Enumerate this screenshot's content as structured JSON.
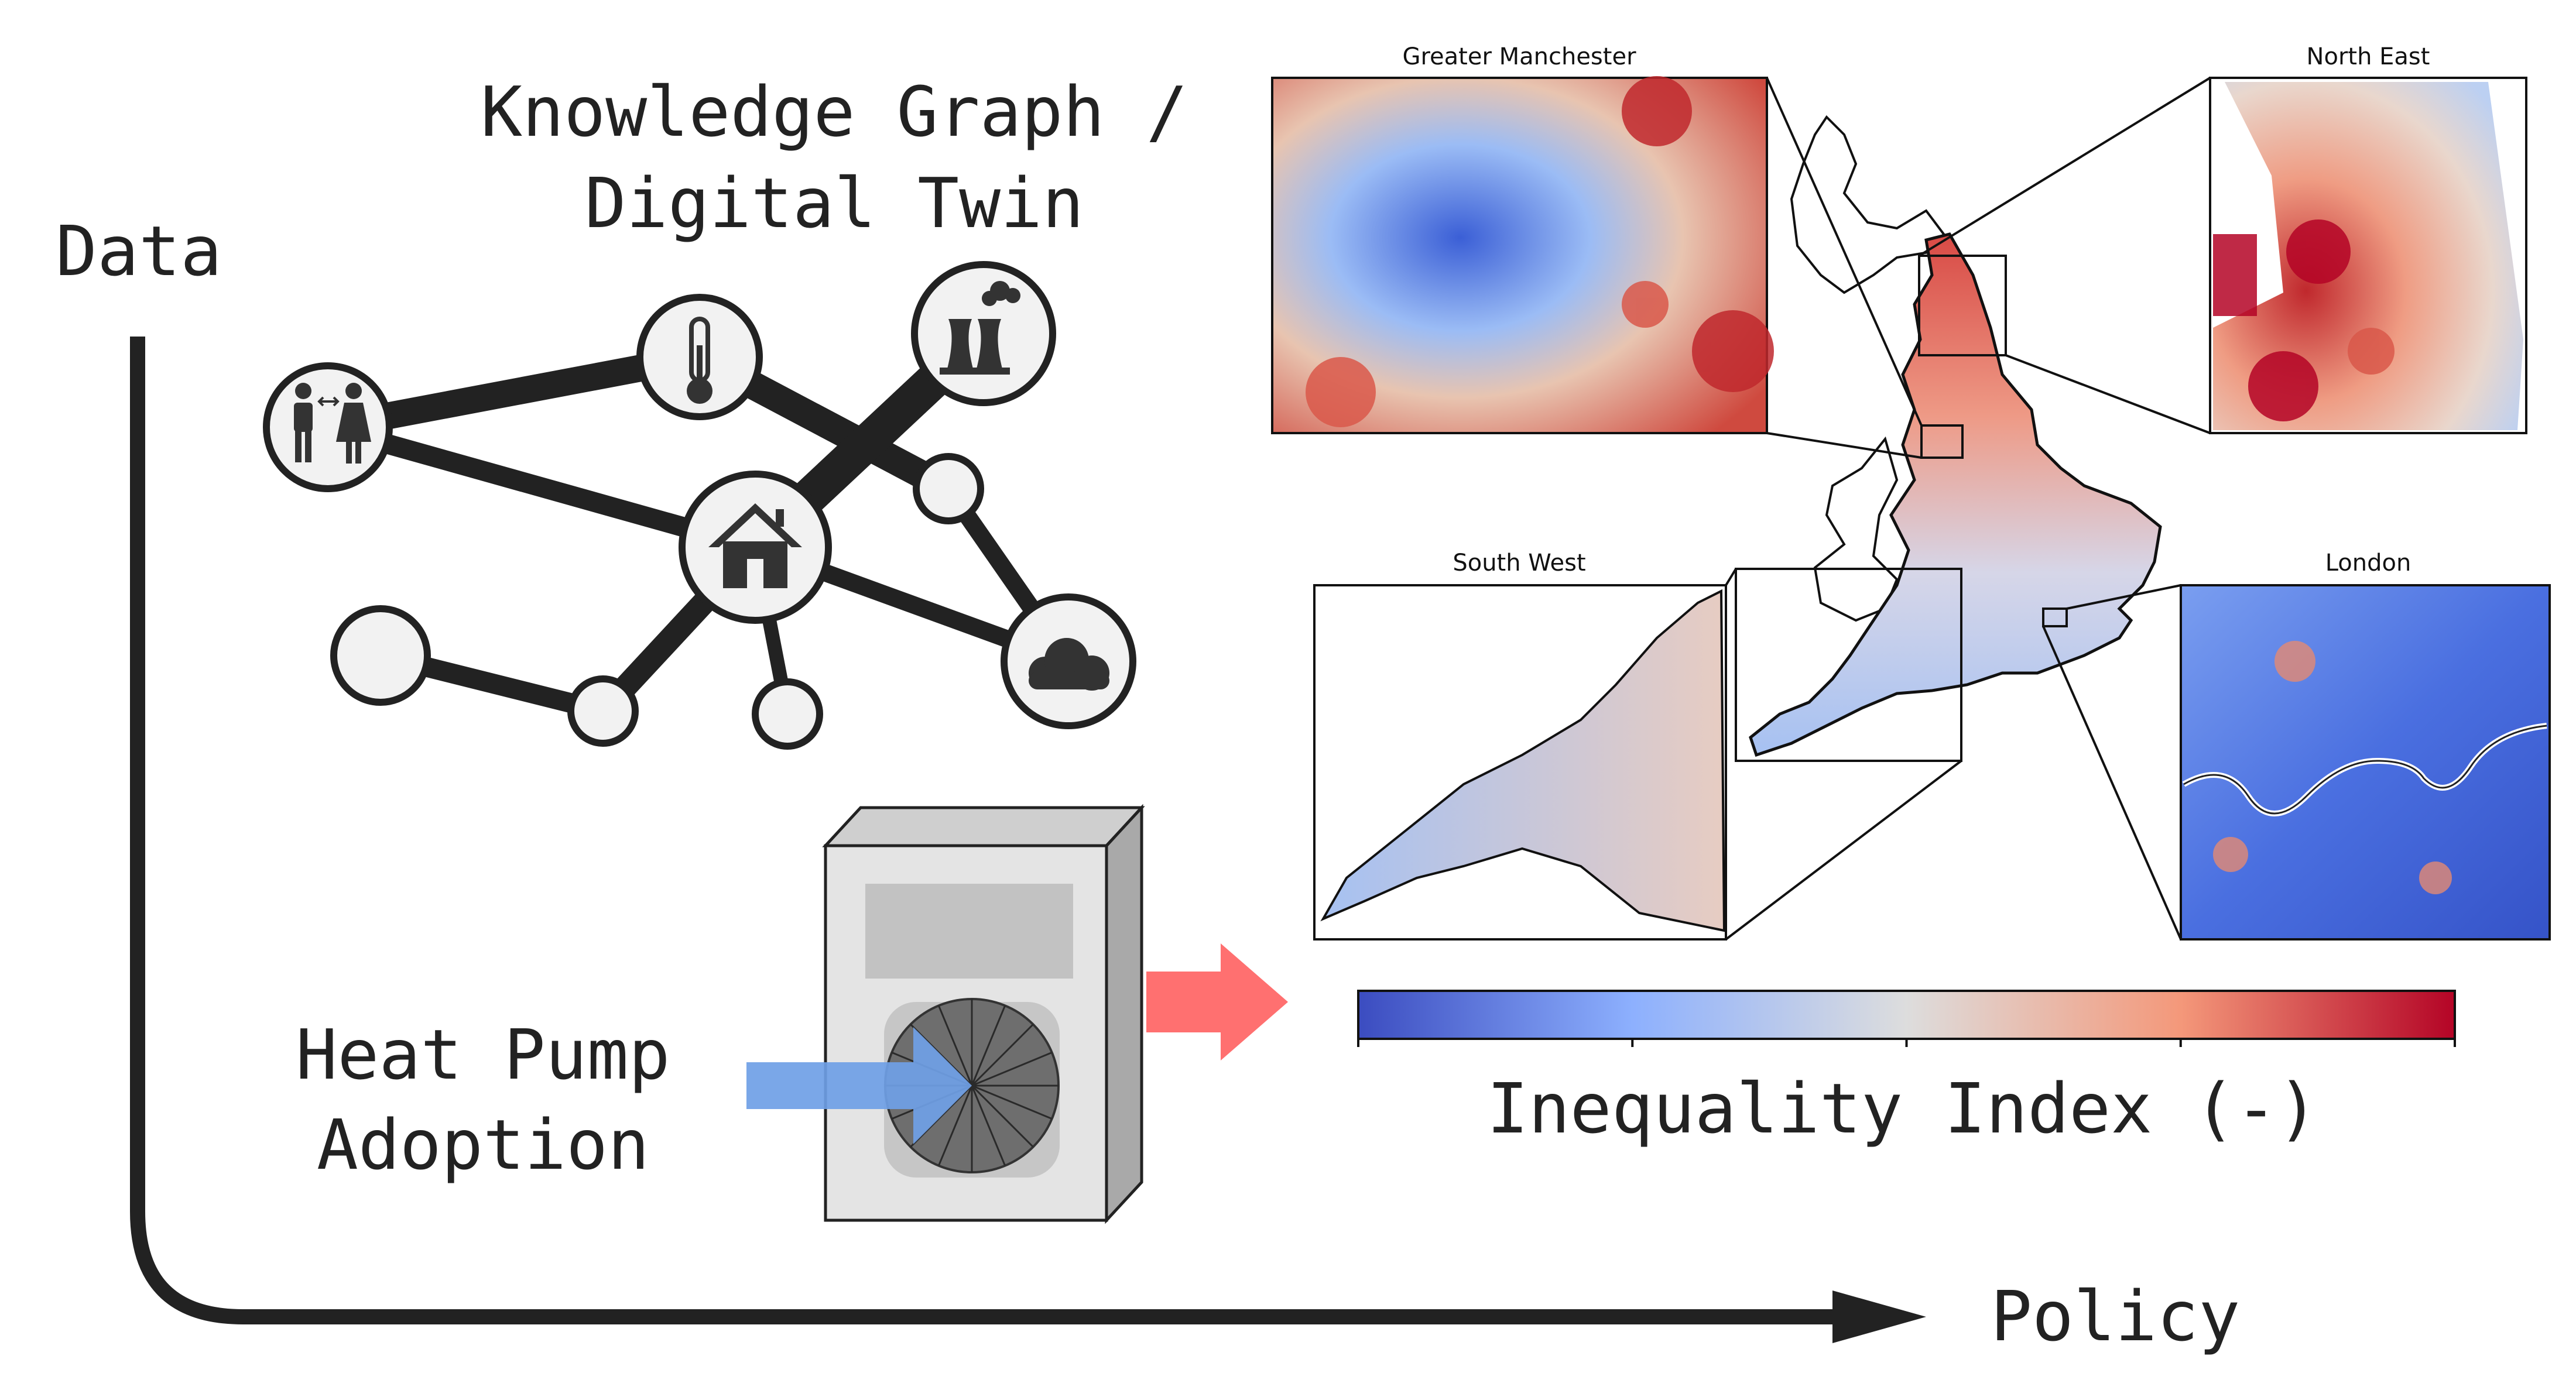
{
  "labels": {
    "data": "Data",
    "policy": "Policy",
    "kg_line1": "Knowledge Graph /",
    "kg_line2": "Digital Twin",
    "hp_line1": "Heat Pump",
    "hp_line2": "Adoption",
    "colorbar_label": "Inequality Index (-)"
  },
  "insets": {
    "greater_manchester": "Greater Manchester",
    "north_east": "North East",
    "south_west": "South West",
    "london": "London"
  },
  "icons": [
    "people-icon",
    "thermometer-icon",
    "power-plant-icon",
    "house-icon",
    "cloud-icon"
  ],
  "colors": {
    "ink": "#222222",
    "node_fill": "#f2f2f2",
    "cold_arrow": "#6f9fe6",
    "hot_arrow": "#ff7070",
    "cmap_low": "#3b4cc0",
    "cmap_mid": "#dddddd",
    "cmap_high": "#b40426"
  }
}
